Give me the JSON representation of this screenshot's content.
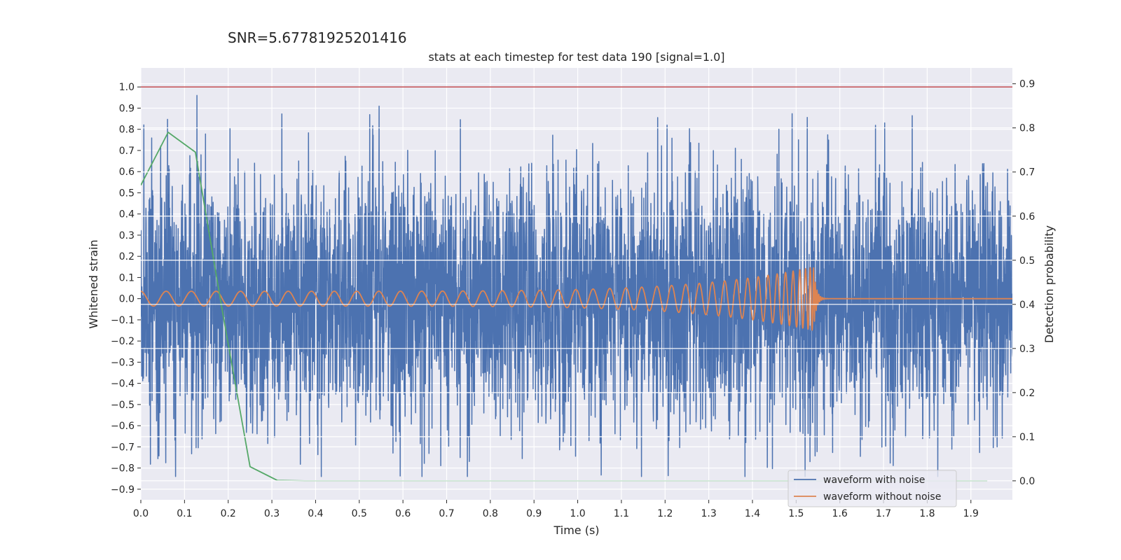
{
  "suptitle": "SNR=5.67781925201416",
  "chart_data": {
    "type": "line",
    "title": "stats at each timestep for test data 190 [signal=1.0]",
    "xlabel": "Time (s)",
    "ylabel": "Whitened strain",
    "y2label": "Detection probability",
    "xlim": [
      0.0,
      1.995
    ],
    "ylim": [
      -0.95,
      1.09
    ],
    "y2lim": [
      -0.043,
      0.936
    ],
    "x_ticks": [
      0.0,
      0.1,
      0.2,
      0.3,
      0.4,
      0.5,
      0.6,
      0.7,
      0.8,
      0.9,
      1.0,
      1.1,
      1.2,
      1.3,
      1.4,
      1.5,
      1.6,
      1.7,
      1.8,
      1.9
    ],
    "x_tick_labels": [
      "0.0",
      "0.1",
      "0.2",
      "0.3",
      "0.4",
      "0.5",
      "0.6",
      "0.7",
      "0.8",
      "0.9",
      "1.0",
      "1.1",
      "1.2",
      "1.3",
      "1.4",
      "1.5",
      "1.6",
      "1.7",
      "1.8",
      "1.9"
    ],
    "y_ticks": [
      1.0,
      0.9,
      0.8,
      0.7,
      0.6,
      0.5,
      0.4,
      0.3,
      0.2,
      0.1,
      0.0,
      -0.1,
      -0.2,
      -0.3,
      -0.4,
      -0.5,
      -0.6,
      -0.7,
      -0.8,
      -0.9
    ],
    "y_tick_labels": [
      "1.0",
      "0.9",
      "0.8",
      "0.7",
      "0.6",
      "0.5",
      "0.4",
      "0.3",
      "0.2",
      "0.1",
      "0.0",
      "−0.1",
      "−0.2",
      "−0.3",
      "−0.4",
      "−0.5",
      "−0.6",
      "−0.7",
      "−0.8",
      "−0.9"
    ],
    "y2_ticks": [
      0.9,
      0.8,
      0.7,
      0.6,
      0.5,
      0.4,
      0.3,
      0.2,
      0.1,
      0.0
    ],
    "y2_tick_labels": [
      "0.9",
      "0.8",
      "0.7",
      "0.6",
      "0.5",
      "0.4",
      "0.3",
      "0.2",
      "0.1",
      "0.0"
    ],
    "threshold_line": {
      "y": 1.0,
      "color": "#c44e52"
    },
    "series": [
      {
        "name": "waveform with noise",
        "axis": "left",
        "color": "#4c72b0",
        "generator": "gaussian_noise",
        "sample_rate": 2048,
        "duration": 2.0,
        "std": 0.3,
        "clip": [
          -0.84,
          1.0
        ],
        "seed": 190
      },
      {
        "name": "waveform without noise",
        "axis": "left",
        "color": "#dd8452",
        "generator": "chirp",
        "sample_rate": 2048,
        "duration": 2.0,
        "merger_time": 1.54,
        "f_start": 17,
        "amp_start": 0.035,
        "amp_peak": 0.15,
        "ringdown_tau": 0.006
      },
      {
        "name": "detection probability",
        "axis": "right",
        "color": "#55a868",
        "in_legend": false,
        "x": [
          0.0,
          0.0625,
          0.125,
          0.1875,
          0.25,
          0.3125,
          0.375,
          0.4375,
          0.5,
          0.5625,
          0.625,
          0.6875,
          0.75,
          0.8125,
          0.875,
          0.9375,
          1.0,
          1.0625,
          1.125,
          1.1875,
          1.25,
          1.3125,
          1.375,
          1.4375,
          1.5,
          1.5625,
          1.625,
          1.6875,
          1.75,
          1.8125,
          1.875,
          1.9375
        ],
        "values": [
          0.67,
          0.79,
          0.745,
          0.38,
          0.032,
          0.001,
          0.0,
          0.0,
          0.0,
          0.0,
          0.0,
          0.0,
          0.0,
          0.0,
          0.0,
          0.0,
          0.0,
          0.0,
          0.0,
          0.0,
          0.0,
          0.0,
          0.0,
          0.0,
          0.0,
          0.0,
          0.0,
          0.0,
          0.0,
          0.0,
          0.0,
          0.0
        ]
      }
    ],
    "legend": {
      "position": "bottom-right",
      "entries": [
        {
          "label": "waveform with noise",
          "color": "#4c72b0"
        },
        {
          "label": "waveform without noise",
          "color": "#dd8452"
        }
      ]
    }
  }
}
